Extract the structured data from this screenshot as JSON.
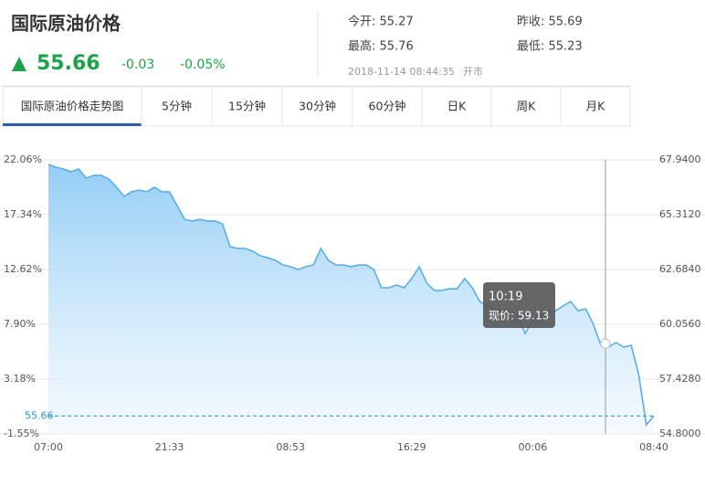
{
  "header": {
    "title": "国际原油价格",
    "price": "55.66",
    "change": "-0.03",
    "change_pct": "-0.05%",
    "open": "今开: 55.27",
    "prev_close": "昨收: 55.69",
    "high": "最高: 55.76",
    "low": "最低: 55.23",
    "timestamp": "2018-11-14 08:44:35",
    "status": "开市"
  },
  "tabs": [
    "国际原油价格走势图",
    "5分钟",
    "15分钟",
    "30分钟",
    "60分钟",
    "日K",
    "周K",
    "月K"
  ],
  "tooltip": {
    "time": "10:19",
    "price_label": "现价: 59.13",
    "price": 59.13
  },
  "chart_data": {
    "type": "line",
    "categories": [
      "07:00",
      null,
      null,
      null,
      null,
      null,
      null,
      null,
      null,
      null,
      null,
      null,
      null,
      null,
      null,
      null,
      "21:33",
      null,
      null,
      null,
      null,
      null,
      null,
      null,
      null,
      null,
      null,
      null,
      null,
      null,
      null,
      null,
      "08:53",
      null,
      null,
      null,
      null,
      null,
      null,
      null,
      null,
      null,
      null,
      null,
      null,
      null,
      null,
      null,
      "16:29",
      null,
      null,
      null,
      null,
      null,
      null,
      null,
      null,
      null,
      null,
      null,
      null,
      null,
      null,
      null,
      "00:06",
      null,
      null,
      null,
      null,
      null,
      null,
      null,
      null,
      null,
      null,
      null,
      null,
      null,
      null,
      null,
      "08:40"
    ],
    "series": [
      {
        "color": "#5aaee8",
        "values": [
          67.72,
          67.59,
          67.5,
          67.37,
          67.5,
          67.06,
          67.2,
          67.2,
          67.02,
          66.63,
          66.19,
          66.41,
          66.49,
          66.41,
          66.63,
          66.41,
          66.41,
          65.75,
          65.09,
          65.01,
          65.09,
          65.01,
          65.01,
          64.87,
          63.78,
          63.69,
          63.69,
          63.56,
          63.34,
          63.25,
          63.12,
          62.9,
          62.82,
          62.68,
          62.82,
          62.9,
          63.69,
          63.12,
          62.9,
          62.9,
          62.82,
          62.9,
          62.9,
          62.68,
          61.81,
          61.81,
          61.94,
          61.81,
          62.25,
          62.82,
          62.03,
          61.68,
          61.68,
          61.76,
          61.76,
          62.25,
          61.81,
          61.15,
          60.93,
          60.8,
          60.71,
          60.8,
          60.49,
          59.62,
          60.28,
          60.49,
          60.63,
          60.71,
          60.93,
          61.15,
          60.71,
          60.8,
          60.06,
          59.05,
          58.96,
          59.18,
          58.96,
          59.05,
          57.65,
          55.24,
          55.66
        ]
      }
    ],
    "ylim": [
      54.8,
      67.94
    ],
    "yticks": [
      {
        "value": 54.8,
        "label": "54.8000"
      },
      {
        "value": 57.428,
        "label": "57.4280"
      },
      {
        "value": 60.056,
        "label": "60.0560"
      },
      {
        "value": 62.684,
        "label": "62.6840"
      },
      {
        "value": 65.312,
        "label": "65.3120"
      },
      {
        "value": 67.94,
        "label": "67.9400"
      }
    ],
    "y2lim": [
      -1.55,
      22.06
    ],
    "y2ticks": [
      {
        "value": -1.55,
        "label": "-1.55%"
      },
      {
        "value": 3.18,
        "label": "3.18%"
      },
      {
        "value": 7.9,
        "label": "7.90%"
      },
      {
        "value": 12.62,
        "label": "12.62%"
      },
      {
        "value": 17.34,
        "label": "17.34%"
      },
      {
        "value": 22.06,
        "label": "22.06%"
      }
    ],
    "last_price": 55.66,
    "grid": true
  }
}
